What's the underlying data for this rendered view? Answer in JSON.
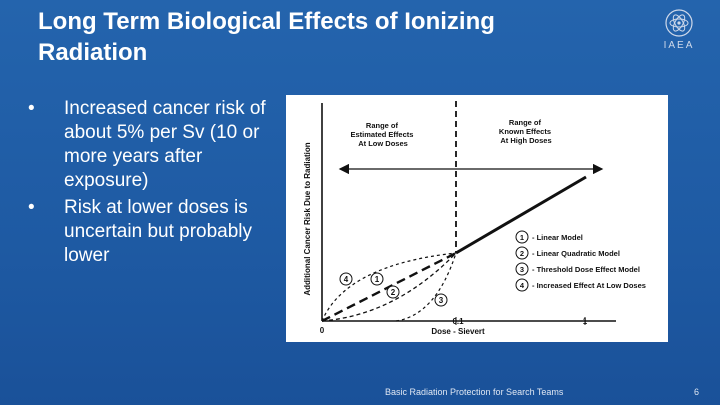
{
  "slide": {
    "title": "Long Term  Biological Effects of Ionizing\nRadiation",
    "logo_text": "IAEA",
    "bullets": [
      "Increased cancer risk of about 5% per Sv (10 or more years after exposure)",
      "Risk at lower doses is uncertain but probably lower"
    ],
    "footer": "Basic Radiation Protection for Search Teams",
    "page_number": "6"
  },
  "figure": {
    "y_axis_label": "Additional Cancer Risk Due to Radiation",
    "x_axis_label": "Dose - Sievert",
    "x_ticks": [
      "0",
      "0.1",
      "1"
    ],
    "range_low": [
      "Range of",
      "Estimated Effects",
      "At Low Doses"
    ],
    "range_high": [
      "Range of",
      "Known Effects",
      "At High Doses"
    ],
    "legend": [
      {
        "num": "1",
        "label": "- Linear Model"
      },
      {
        "num": "2",
        "label": "- Linear Quadratic Model"
      },
      {
        "num": "3",
        "label": "- Threshold Dose Effect Model"
      },
      {
        "num": "4",
        "label": "- Increased Effect At Low Doses"
      }
    ]
  }
}
